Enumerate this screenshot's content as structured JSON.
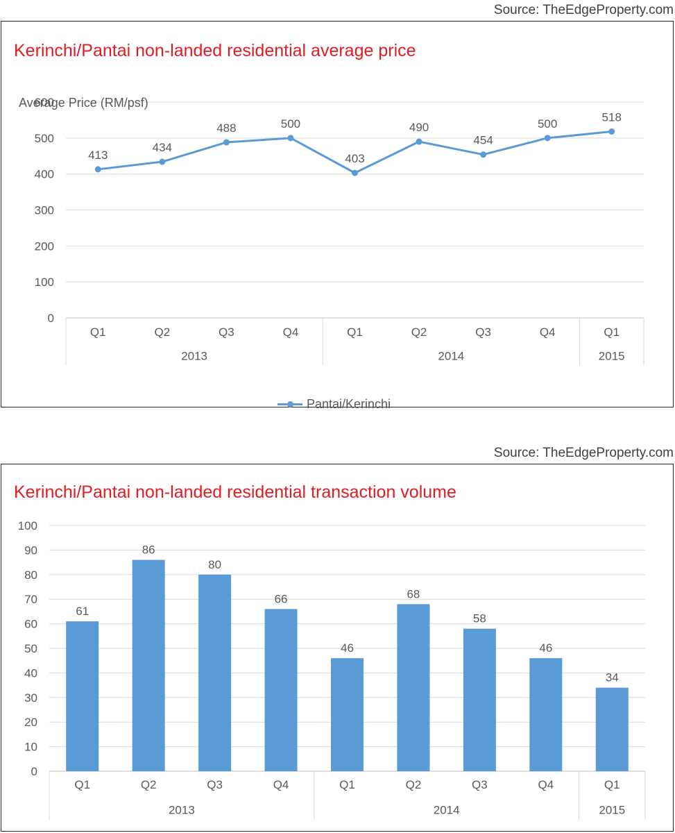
{
  "chart1": {
    "source": "Source: TheEdgeProperty.com",
    "title": "Kerinchi/Pantai non-landed residential average price",
    "ylabel": "Average Price (RM/psf)",
    "legend": "Pantai/Kerinchi",
    "color": "#5b9bd5"
  },
  "chart2": {
    "source": "Source: TheEdgeProperty.com",
    "title": "Kerinchi/Pantai non-landed residential transaction volume",
    "color": "#5b9bd5"
  },
  "chart_data": [
    {
      "type": "line",
      "title": "Kerinchi/Pantai non-landed residential average price",
      "ylabel": "Average Price (RM/psf)",
      "xlabel": "",
      "categories": [
        "Q1",
        "Q2",
        "Q3",
        "Q4",
        "Q1",
        "Q2",
        "Q3",
        "Q4",
        "Q1"
      ],
      "groups": [
        {
          "label": "2013",
          "count": 4
        },
        {
          "label": "2014",
          "count": 4
        },
        {
          "label": "2015",
          "count": 1
        }
      ],
      "series": [
        {
          "name": "Pantai/Kerinchi",
          "values": [
            413,
            434,
            488,
            500,
            403,
            490,
            454,
            500,
            518
          ]
        }
      ],
      "ylim": [
        0,
        600
      ],
      "yticks": [
        0,
        100,
        200,
        300,
        400,
        500,
        600
      ],
      "grid": true,
      "legend": "bottom"
    },
    {
      "type": "bar",
      "title": "Kerinchi/Pantai non-landed residential transaction volume",
      "xlabel": "",
      "ylabel": "",
      "categories": [
        "Q1",
        "Q2",
        "Q3",
        "Q4",
        "Q1",
        "Q2",
        "Q3",
        "Q4",
        "Q1"
      ],
      "groups": [
        {
          "label": "2013",
          "count": 4
        },
        {
          "label": "2014",
          "count": 4
        },
        {
          "label": "2015",
          "count": 1
        }
      ],
      "values": [
        61,
        86,
        80,
        66,
        46,
        68,
        58,
        46,
        34
      ],
      "ylim": [
        0,
        100
      ],
      "yticks": [
        0,
        10,
        20,
        30,
        40,
        50,
        60,
        70,
        80,
        90,
        100
      ],
      "grid": true
    }
  ]
}
